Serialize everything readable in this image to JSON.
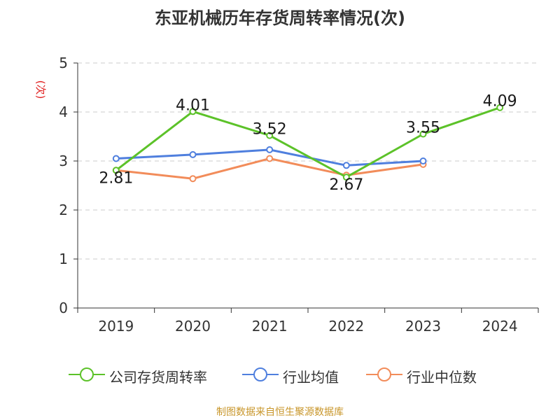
{
  "chart_data": {
    "type": "line",
    "title": "东亚机械历年存货周转率情况(次)",
    "ylabel": "(次)",
    "xlabel": "",
    "categories": [
      "2019",
      "2020",
      "2021",
      "2022",
      "2023",
      "2024"
    ],
    "ylim": [
      0,
      5
    ],
    "yticks": [
      "0",
      "1",
      "2",
      "3",
      "4",
      "5"
    ],
    "grid": true,
    "legend_position": "bottom",
    "series": [
      {
        "name": "公司存货周转率",
        "color": "#5cc229",
        "values": [
          2.81,
          4.01,
          3.52,
          2.67,
          3.55,
          4.09
        ],
        "labels": [
          "2.81",
          "4.01",
          "3.52",
          "2.67",
          "3.55",
          "4.09"
        ]
      },
      {
        "name": "行业均值",
        "color": "#4f7fde",
        "values": [
          3.05,
          3.13,
          3.23,
          2.91,
          3.0,
          null
        ]
      },
      {
        "name": "行业中位数",
        "color": "#f28c5a",
        "values": [
          2.81,
          2.64,
          3.05,
          2.71,
          2.93,
          null
        ]
      }
    ]
  },
  "source_note": "制图数据来自恒生聚源数据库"
}
